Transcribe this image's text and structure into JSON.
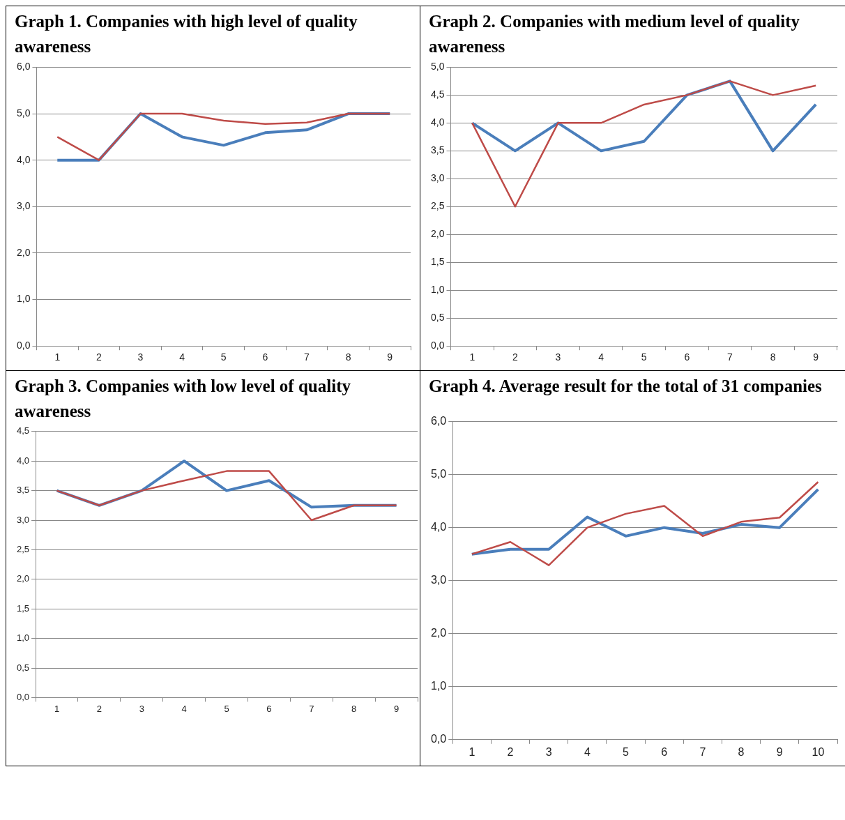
{
  "chart_data": [
    {
      "type": "line",
      "title": "Graph 1. Companies with high level of quality awareness",
      "categories": [
        "1",
        "2",
        "3",
        "4",
        "5",
        "6",
        "7",
        "8",
        "9"
      ],
      "series": [
        {
          "color": "#4a7ebb",
          "values": [
            4.0,
            4.0,
            5.0,
            4.5,
            4.32,
            4.59,
            4.65,
            5.0,
            5.0
          ]
        },
        {
          "color": "#be4b48",
          "values": [
            4.5,
            4.0,
            5.0,
            5.0,
            4.85,
            4.78,
            4.81,
            5.0,
            5.0
          ]
        }
      ],
      "ylim": [
        0,
        6
      ],
      "yticks": [
        {
          "value": 0,
          "label": "0,0"
        },
        {
          "value": 1,
          "label": "1,0"
        },
        {
          "value": 2,
          "label": "2,0"
        },
        {
          "value": 3,
          "label": "3,0"
        },
        {
          "value": 4,
          "label": "4,0"
        },
        {
          "value": 5,
          "label": "5,0"
        },
        {
          "value": 6,
          "label": "6,0"
        }
      ],
      "grid": "y",
      "legend": false,
      "marker": "none",
      "line_style": "solid"
    },
    {
      "type": "line",
      "title": "Graph 2. Companies with medium level of quality awareness",
      "categories": [
        "1",
        "2",
        "3",
        "4",
        "5",
        "6",
        "7",
        "8",
        "9"
      ],
      "series": [
        {
          "color": "#4a7ebb",
          "values": [
            4.0,
            3.5,
            4.0,
            3.5,
            3.67,
            4.5,
            4.75,
            3.5,
            4.33
          ]
        },
        {
          "color": "#be4b48",
          "values": [
            4.0,
            2.5,
            4.0,
            4.0,
            4.33,
            4.5,
            4.75,
            4.5,
            4.67
          ]
        }
      ],
      "ylim": [
        0,
        5
      ],
      "yticks": [
        {
          "value": 0,
          "label": "0,0"
        },
        {
          "value": 0.5,
          "label": "0,5"
        },
        {
          "value": 1,
          "label": "1,0"
        },
        {
          "value": 1.5,
          "label": "1,5"
        },
        {
          "value": 2,
          "label": "2,0"
        },
        {
          "value": 2.5,
          "label": "2,5"
        },
        {
          "value": 3,
          "label": "3,0"
        },
        {
          "value": 3.5,
          "label": "3,5"
        },
        {
          "value": 4,
          "label": "4,0"
        },
        {
          "value": 4.5,
          "label": "4,5"
        },
        {
          "value": 5,
          "label": "5,0"
        }
      ],
      "grid": "y",
      "legend": false,
      "marker": "none",
      "line_style": "solid"
    },
    {
      "type": "line",
      "title": "Graph 3. Companies with low level of quality awareness",
      "categories": [
        "1",
        "2",
        "3",
        "4",
        "5",
        "6",
        "7",
        "8",
        "9"
      ],
      "series": [
        {
          "color": "#4a7ebb",
          "values": [
            3.5,
            3.25,
            3.5,
            4.0,
            3.5,
            3.67,
            3.22,
            3.25,
            3.25
          ]
        },
        {
          "color": "#be4b48",
          "values": [
            3.5,
            3.25,
            3.5,
            3.67,
            3.83,
            3.83,
            3.0,
            3.25,
            3.25
          ]
        }
      ],
      "ylim": [
        0,
        4.5
      ],
      "yticks": [
        {
          "value": 0,
          "label": "0,0"
        },
        {
          "value": 0.5,
          "label": "0,5"
        },
        {
          "value": 1,
          "label": "1,0"
        },
        {
          "value": 1.5,
          "label": "1,5"
        },
        {
          "value": 2,
          "label": "2,0"
        },
        {
          "value": 2.5,
          "label": "2,5"
        },
        {
          "value": 3,
          "label": "3,0"
        },
        {
          "value": 3.5,
          "label": "3,5"
        },
        {
          "value": 4,
          "label": "4,0"
        },
        {
          "value": 4.5,
          "label": "4,5"
        }
      ],
      "grid": "y",
      "legend": false,
      "marker": "none",
      "line_style": "solid"
    },
    {
      "type": "line",
      "title": "Graph 4. Average result for the total of 31 companies",
      "categories": [
        "1",
        "2",
        "3",
        "4",
        "5",
        "6",
        "7",
        "8",
        "9",
        "10"
      ],
      "series": [
        {
          "color": "#4a7ebb",
          "values": [
            3.5,
            3.59,
            3.59,
            4.2,
            3.84,
            4.0,
            3.89,
            4.06,
            4.0,
            4.72
          ]
        },
        {
          "color": "#be4b48",
          "values": [
            3.5,
            3.73,
            3.29,
            4.0,
            4.26,
            4.41,
            3.84,
            4.11,
            4.19,
            4.86
          ]
        }
      ],
      "ylim": [
        0,
        6
      ],
      "yticks": [
        {
          "value": 0,
          "label": "0,0"
        },
        {
          "value": 1,
          "label": "1,0"
        },
        {
          "value": 2,
          "label": "2,0"
        },
        {
          "value": 3,
          "label": "3,0"
        },
        {
          "value": 4,
          "label": "4,0"
        },
        {
          "value": 5,
          "label": "5,0"
        },
        {
          "value": 6,
          "label": "6,0"
        }
      ],
      "grid": "y",
      "legend": false,
      "marker": "none",
      "line_style": "solid"
    }
  ]
}
